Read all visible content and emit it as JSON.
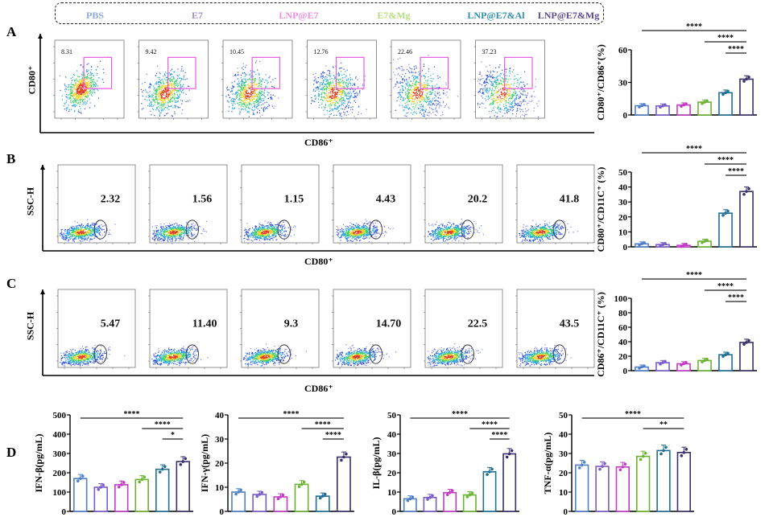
{
  "groups": [
    {
      "name": "PBS",
      "color": "#8fa9d8",
      "stroke": "#4f7fc9"
    },
    {
      "name": "E7",
      "color": "#a48cd2",
      "stroke": "#7a5cc8"
    },
    {
      "name": "LNP@E7",
      "color": "#f08ee6",
      "stroke": "#c23bc4"
    },
    {
      "name": "E7&Mg",
      "color": "#b5df7e",
      "stroke": "#6cb233"
    },
    {
      "name": "LNP@E7&Al",
      "color": "#2f8fb0",
      "stroke": "#1f6f92"
    },
    {
      "name": "LNP@E7&Mg",
      "color": "#5b4a93",
      "stroke": "#3b2f6c"
    }
  ],
  "panels": {
    "A": {
      "letter": "A",
      "ylabel": "CD80⁺",
      "xlabel": "CD86⁺",
      "gate_values": [
        "8.31",
        "9.42",
        "10.45",
        "12.76",
        "22.46",
        "37.23"
      ]
    },
    "B": {
      "letter": "B",
      "ylabel": "SSC-H",
      "xlabel": "CD80⁺",
      "gate_values": [
        "2.32",
        "1.56",
        "1.15",
        "4.43",
        "20.2",
        "41.8"
      ]
    },
    "C": {
      "letter": "C",
      "ylabel": "SSC-H",
      "xlabel": "CD86⁺",
      "gate_values": [
        "5.47",
        "11.40",
        "9.3",
        "14.70",
        "22.5",
        "43.5"
      ]
    },
    "D": {
      "letter": "D"
    }
  },
  "chart_data": [
    {
      "type": "bar",
      "panel": "A",
      "ylabel": "CD80⁺/CD86⁺(%)",
      "ylim": [
        0,
        60
      ],
      "yticks": [
        0,
        30,
        60
      ],
      "categories": [
        "PBS",
        "E7",
        "LNP@E7",
        "E7&Mg",
        "LNP@E7&Al",
        "LNP@E7&Mg"
      ],
      "values": [
        8.5,
        8.3,
        9.2,
        11.8,
        20.5,
        33
      ],
      "significance": [
        {
          "from": 0,
          "to": 5,
          "label": "****"
        },
        {
          "from": 3,
          "to": 5,
          "label": "****"
        },
        {
          "from": 4,
          "to": 5,
          "label": "****"
        }
      ]
    },
    {
      "type": "bar",
      "panel": "B",
      "ylabel": "CD80⁺/CD11C⁺ (%)",
      "ylim": [
        0,
        50
      ],
      "yticks": [
        0,
        10,
        20,
        30,
        40,
        50
      ],
      "categories": [
        "PBS",
        "E7",
        "LNP@E7",
        "E7&Mg",
        "LNP@E7&Al",
        "LNP@E7&Mg"
      ],
      "values": [
        2,
        1.5,
        1,
        3.7,
        22.5,
        37
      ],
      "significance": [
        {
          "from": 0,
          "to": 5,
          "label": "****"
        },
        {
          "from": 3,
          "to": 5,
          "label": "****"
        },
        {
          "from": 4,
          "to": 5,
          "label": "****"
        }
      ]
    },
    {
      "type": "bar",
      "panel": "C",
      "ylabel": "CD86⁺/CD11C⁺ (%)",
      "ylim": [
        0,
        100
      ],
      "yticks": [
        0,
        20,
        40,
        60,
        80,
        100
      ],
      "categories": [
        "PBS",
        "E7",
        "LNP@E7",
        "E7&Mg",
        "LNP@E7&Al",
        "LNP@E7&Mg"
      ],
      "values": [
        5,
        11,
        9.5,
        14,
        22,
        39
      ],
      "significance": [
        {
          "from": 0,
          "to": 5,
          "label": "****"
        },
        {
          "from": 3,
          "to": 5,
          "label": "****"
        },
        {
          "from": 4,
          "to": 5,
          "label": "****"
        }
      ]
    },
    {
      "type": "bar",
      "panel": "D",
      "ylabel": "IFN-β(pg/mL)",
      "ylim": [
        0,
        500
      ],
      "yticks": [
        0,
        100,
        200,
        300,
        400,
        500
      ],
      "categories": [
        "PBS",
        "E7",
        "LNP@E7",
        "E7&Mg",
        "LNP@E7&Al",
        "LNP@E7&Mg"
      ],
      "values": [
        170,
        125,
        138,
        165,
        218,
        258
      ],
      "significance": [
        {
          "from": 0,
          "to": 5,
          "label": "****"
        },
        {
          "from": 3,
          "to": 5,
          "label": "****"
        },
        {
          "from": 4,
          "to": 5,
          "label": "*"
        }
      ]
    },
    {
      "type": "bar",
      "panel": "D",
      "ylabel": "IFN-γ(pg/mL)",
      "ylim": [
        0,
        40
      ],
      "yticks": [
        0,
        10,
        20,
        30,
        40
      ],
      "categories": [
        "PBS",
        "E7",
        "LNP@E7",
        "E7&Mg",
        "LNP@E7&Al",
        "LNP@E7&Mg"
      ],
      "values": [
        8,
        7,
        6,
        11.2,
        6.3,
        22.5
      ],
      "significance": [
        {
          "from": 0,
          "to": 5,
          "label": "****"
        },
        {
          "from": 3,
          "to": 5,
          "label": "****"
        },
        {
          "from": 4,
          "to": 5,
          "label": "****"
        }
      ]
    },
    {
      "type": "bar",
      "panel": "D",
      "ylabel": "IL-β(pg/mL)",
      "ylim": [
        0,
        50
      ],
      "yticks": [
        0,
        10,
        20,
        30,
        40,
        50
      ],
      "categories": [
        "PBS",
        "E7",
        "LNP@E7",
        "E7&Mg",
        "LNP@E7&Al",
        "LNP@E7&Mg"
      ],
      "values": [
        6.5,
        7.2,
        9.7,
        8.5,
        20.5,
        29.8
      ],
      "significance": [
        {
          "from": 0,
          "to": 5,
          "label": "****"
        },
        {
          "from": 3,
          "to": 5,
          "label": "****"
        },
        {
          "from": 4,
          "to": 5,
          "label": "****"
        }
      ]
    },
    {
      "type": "bar",
      "panel": "D",
      "ylabel": "TNF-α(pg/mL)",
      "ylim": [
        0,
        50
      ],
      "yticks": [
        0,
        10,
        20,
        30,
        40,
        50
      ],
      "categories": [
        "PBS",
        "E7",
        "LNP@E7",
        "E7&Mg",
        "LNP@E7&Al",
        "LNP@E7&Mg"
      ],
      "values": [
        24,
        23.3,
        23,
        28.5,
        31.5,
        30.5
      ],
      "significance": [
        {
          "from": 0,
          "to": 5,
          "label": "****"
        },
        {
          "from": 3,
          "to": 5,
          "label": "**"
        }
      ]
    }
  ]
}
